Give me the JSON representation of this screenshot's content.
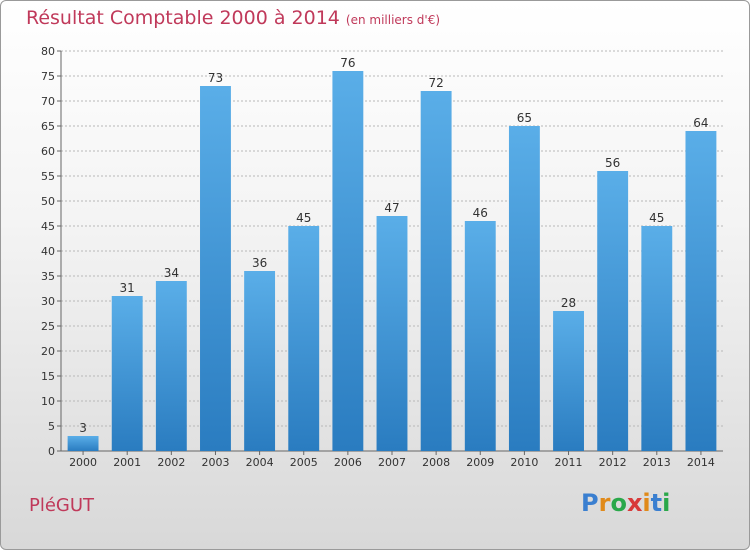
{
  "chart_data": {
    "type": "bar",
    "title": "Résultat Comptable 2000 à 2014",
    "subtitle": "(en milliers d'€)",
    "categories": [
      "2000",
      "2001",
      "2002",
      "2003",
      "2004",
      "2005",
      "2006",
      "2007",
      "2008",
      "2009",
      "2010",
      "2011",
      "2012",
      "2013",
      "2014"
    ],
    "values": [
      3,
      31,
      34,
      73,
      36,
      45,
      76,
      47,
      72,
      46,
      65,
      28,
      56,
      45,
      64
    ],
    "ylim": [
      0,
      80
    ],
    "yticks": [
      0,
      5,
      10,
      15,
      20,
      25,
      30,
      35,
      40,
      45,
      50,
      55,
      60,
      65,
      70,
      75,
      80
    ],
    "xlabel": "",
    "ylabel": "",
    "grid": true
  },
  "footer": {
    "commune": "PléGUT",
    "logo_letters": [
      "P",
      "r",
      "o",
      "x",
      "i",
      "t",
      "i"
    ]
  },
  "colors": {
    "title": "#c0395a",
    "bar_top": "#5aaee8",
    "bar_bottom": "#2a7cc0",
    "logo": [
      "#3a7fd0",
      "#e08a1a",
      "#2aa84a",
      "#d83a3a",
      "#e08a1a",
      "#3a7fd0",
      "#2aa84a"
    ]
  }
}
